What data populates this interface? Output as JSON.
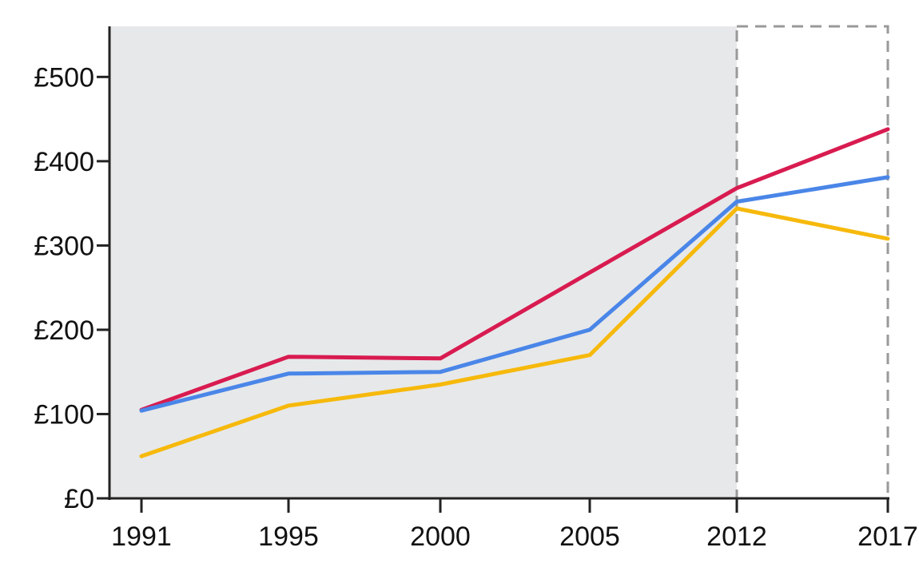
{
  "chart_data": {
    "type": "line",
    "x": [
      1991,
      1995,
      2000,
      2005,
      2012,
      2017
    ],
    "x_tick_labels": [
      "1991",
      "1995",
      "2000",
      "2005",
      "2012",
      "2017"
    ],
    "y_ticks": [
      0,
      100,
      200,
      300,
      400,
      500
    ],
    "y_tick_labels": [
      "£0",
      "£100",
      "£200",
      "£300",
      "£400",
      "£500"
    ],
    "ylim": [
      0,
      560
    ],
    "shaded_region": {
      "x_range": [
        1991,
        2012
      ],
      "color": "#e7e8ea"
    },
    "dashed_region": {
      "x_range": [
        2012,
        2017
      ],
      "color": "#999999"
    },
    "series": [
      {
        "color": "#d81b50",
        "values": [
          105,
          168,
          166,
          268,
          368,
          438
        ]
      },
      {
        "color": "#4a86e8",
        "values": [
          104,
          148,
          150,
          200,
          352,
          381
        ]
      },
      {
        "color": "#f6b90c",
        "values": [
          50,
          110,
          135,
          170,
          344,
          308
        ]
      }
    ],
    "title": "",
    "xlabel": "",
    "ylabel": "",
    "grid": false,
    "legend": "none"
  }
}
